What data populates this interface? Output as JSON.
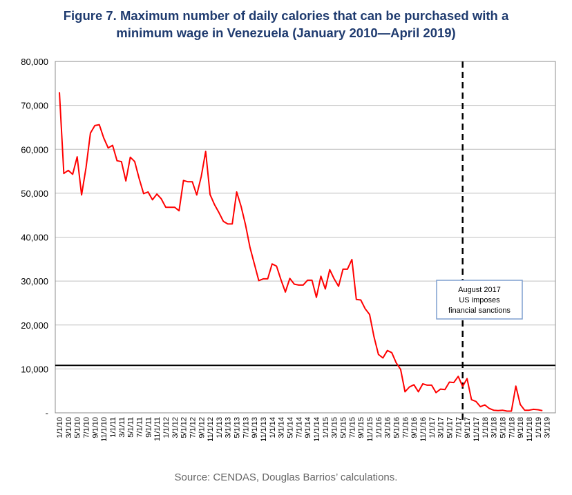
{
  "title_line1": "Figure 7. Maximum number of daily calories that can be purchased with a",
  "title_line2": "minimum wage in Venezuela (January 2010—April 2019)",
  "source": "Source: CENDAS, Douglas Barrios’ calculations.",
  "chart_data": {
    "type": "line",
    "title": "Figure 7. Maximum number of daily calories that can be purchased with a minimum wage in Venezuela (January 2010—April 2019)",
    "xlabel": "",
    "ylabel": "",
    "ylim": [
      0,
      80000
    ],
    "yticks": [
      0,
      10000,
      20000,
      30000,
      40000,
      50000,
      60000,
      70000,
      80000
    ],
    "ytick_labels": [
      "-",
      "10,000",
      "20,000",
      "30,000",
      "40,000",
      "50,000",
      "60,000",
      "70,000",
      "80,000"
    ],
    "grid": "horizontal",
    "x_start": "2010-01",
    "x_end": "2019-04",
    "xtick_labels": [
      "1/1/10",
      "3/1/10",
      "5/1/10",
      "7/1/10",
      "9/1/10",
      "11/1/10",
      "1/1/11",
      "3/1/11",
      "5/1/11",
      "7/1/11",
      "9/1/11",
      "11/1/11",
      "1/1/12",
      "3/1/12",
      "5/1/12",
      "7/1/12",
      "9/1/12",
      "11/1/12",
      "1/1/13",
      "3/1/13",
      "5/1/13",
      "7/1/13",
      "9/1/13",
      "11/1/13",
      "1/1/14",
      "3/1/14",
      "5/1/14",
      "7/1/14",
      "9/1/14",
      "11/1/14",
      "1/1/15",
      "3/1/15",
      "5/1/15",
      "7/1/15",
      "9/1/15",
      "11/1/15",
      "1/1/16",
      "3/1/16",
      "5/1/16",
      "7/1/16",
      "9/1/16",
      "11/1/16",
      "1/1/17",
      "3/1/17",
      "5/1/17",
      "7/1/17",
      "9/1/17",
      "11/1/17",
      "1/1/18",
      "3/1/18",
      "5/1/18",
      "7/1/18",
      "9/1/18",
      "11/1/18",
      "1/1/19",
      "3/1/19"
    ],
    "series": [
      {
        "color": "#ff0000",
        "values": [
          73000,
          54500,
          55200,
          54300,
          58300,
          49600,
          55800,
          63700,
          65400,
          65600,
          62600,
          60300,
          60900,
          57400,
          57200,
          52800,
          58200,
          57200,
          53300,
          49900,
          50300,
          48500,
          49800,
          48700,
          46800,
          46800,
          46800,
          46000,
          52900,
          52600,
          52600,
          49600,
          53800,
          59500,
          49700,
          47400,
          45600,
          43600,
          43000,
          43000,
          50300,
          47000,
          42800,
          37700,
          33900,
          30100,
          30500,
          30500,
          33900,
          33400,
          30300,
          27500,
          30600,
          29300,
          29100,
          29100,
          30200,
          30200,
          26300,
          31100,
          28200,
          32600,
          30500,
          28800,
          32700,
          32700,
          34900,
          25800,
          25700,
          23700,
          22400,
          17300,
          13300,
          12500,
          14200,
          13700,
          11400,
          9900,
          4800,
          5900,
          6400,
          4800,
          6600,
          6300,
          6300,
          4600,
          5400,
          5300,
          7000,
          6900,
          8300,
          6000,
          7800,
          3000,
          2600,
          1400,
          1800,
          1000,
          600,
          500,
          600,
          400,
          400,
          6100,
          1900,
          600,
          600,
          800,
          700,
          500
        ]
      }
    ],
    "reference_line": {
      "value": 10800,
      "orientation": "horizontal",
      "color": "#000000"
    },
    "event_line": {
      "x": "2017-08",
      "style": "dashed",
      "color": "#000000"
    },
    "annotation": {
      "lines": [
        "August 2017",
        "US imposes",
        "financial sanctions"
      ]
    }
  }
}
